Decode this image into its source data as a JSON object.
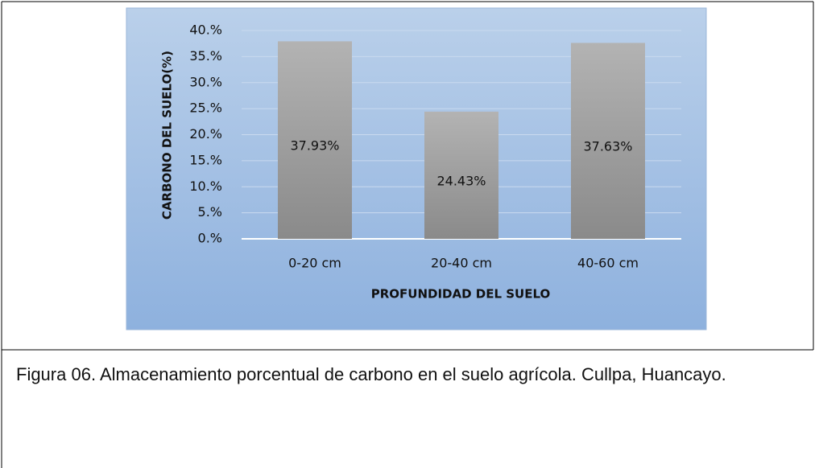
{
  "chart_data": {
    "type": "bar",
    "categories": [
      "0-20 cm",
      "20-40 cm",
      "40-60 cm"
    ],
    "values": [
      37.93,
      24.43,
      37.63
    ],
    "value_labels": [
      "37.93%",
      "24.43%",
      "37.63%"
    ],
    "color": "#9e9e9e",
    "x_label": "PROFUNDIDAD DEL SUELO",
    "y_label": "CARBONO DEL SUELO(%)",
    "ylim": [
      0,
      40
    ],
    "yticks": [
      {
        "value": 0,
        "label": "0.%"
      },
      {
        "value": 5,
        "label": "5.%"
      },
      {
        "value": 10,
        "label": "10.%"
      },
      {
        "value": 15,
        "label": "15.%"
      },
      {
        "value": 20,
        "label": "20.%"
      },
      {
        "value": 25,
        "label": "25.%"
      },
      {
        "value": 30,
        "label": "30.%"
      },
      {
        "value": 35,
        "label": "35.%"
      },
      {
        "value": 40,
        "label": "40.%"
      }
    ],
    "grid": true
  },
  "caption": "Figura 06. Almacenamiento porcentual de carbono en el suelo agrícola. Cullpa, Huancayo."
}
